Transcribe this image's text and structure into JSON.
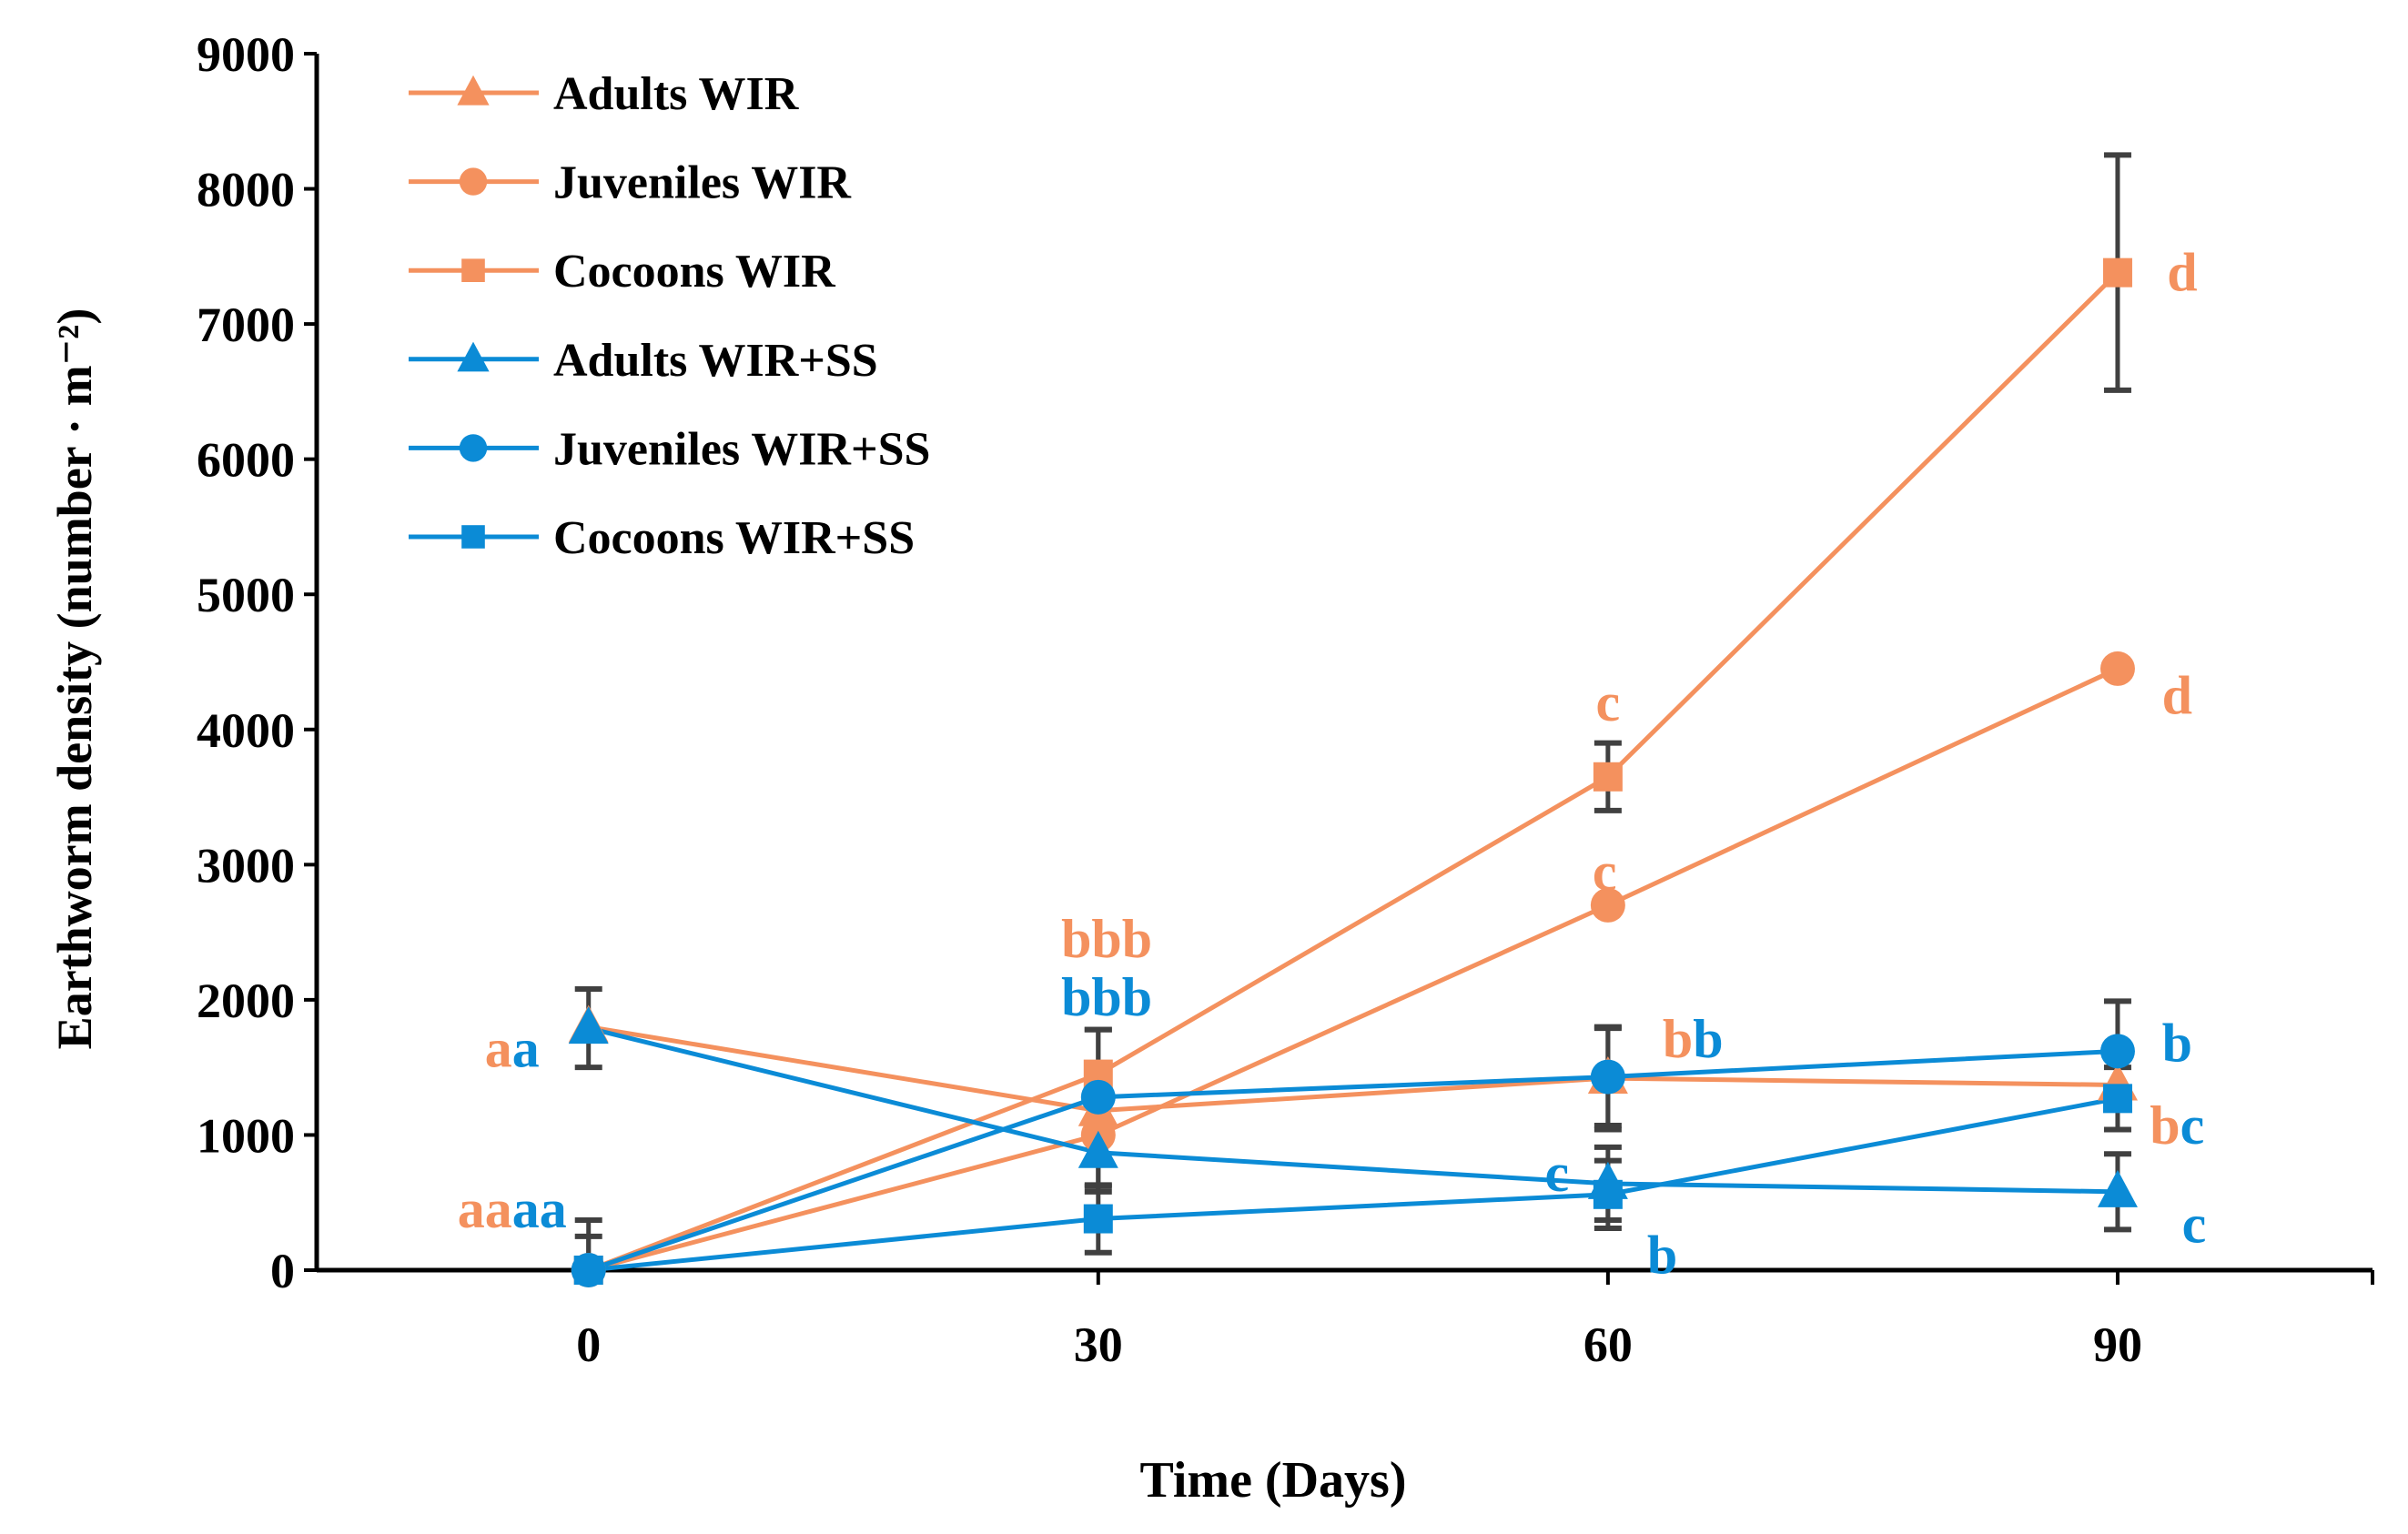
{
  "chart_data": {
    "type": "line",
    "title": "",
    "xlabel": "Time (Days)",
    "ylabel": "Earthworm density  (number · m⁻²)",
    "x": [
      0,
      30,
      60,
      90
    ],
    "xticks": [
      0,
      30,
      60,
      90
    ],
    "xlim": [
      -16,
      105
    ],
    "ylim": [
      0,
      9000
    ],
    "yticks": [
      0,
      1000,
      2000,
      3000,
      4000,
      5000,
      6000,
      7000,
      8000,
      9000
    ],
    "grid": false,
    "legend_position": "top-left",
    "colors": {
      "orange": "#F4915E",
      "blue": "#0B8BD6",
      "error": "#404040"
    },
    "series": [
      {
        "name": "Adults WIR",
        "color": "orange",
        "marker": "triangle",
        "values": [
          1800,
          1180,
          1420,
          1370
        ],
        "errors": [
          0,
          600,
          380,
          0
        ]
      },
      {
        "name": "Juveniles WIR",
        "color": "orange",
        "marker": "circle",
        "values": [
          0,
          1000,
          2700,
          4450
        ],
        "errors": [
          0,
          0,
          0,
          0
        ]
      },
      {
        "name": "Cocoons WIR",
        "color": "orange",
        "marker": "square",
        "values": [
          0,
          1450,
          3650,
          7380
        ],
        "errors": [
          0,
          330,
          250,
          870
        ]
      },
      {
        "name": "Adults WIR+SS",
        "color": "blue",
        "marker": "triangle",
        "values": [
          1790,
          870,
          640,
          580
        ],
        "errors": [
          290,
          250,
          270,
          280
        ]
      },
      {
        "name": "Juveniles WIR+SS",
        "color": "blue",
        "marker": "circle",
        "values": [
          0,
          1280,
          1430,
          1620
        ],
        "errors": [
          370,
          0,
          360,
          370
        ]
      },
      {
        "name": "Cocoons WIR+SS",
        "color": "blue",
        "marker": "square",
        "values": [
          0,
          380,
          560,
          1270
        ],
        "errors": [
          250,
          250,
          250,
          230
        ]
      }
    ],
    "annotations": [
      {
        "x": -4.5,
        "y": 1640,
        "parts": [
          {
            "text": "a",
            "color": "orange"
          },
          {
            "text": "a",
            "color": "blue"
          }
        ]
      },
      {
        "x": -4.5,
        "y": 450,
        "parts": [
          {
            "text": "aa",
            "color": "orange"
          },
          {
            "text": "aa",
            "color": "blue"
          }
        ]
      },
      {
        "x": 30.5,
        "y": 2450,
        "parts": [
          {
            "text": "bbb",
            "color": "orange"
          }
        ]
      },
      {
        "x": 30.5,
        "y": 2020,
        "parts": [
          {
            "text": "bbb",
            "color": "blue"
          }
        ]
      },
      {
        "x": 60,
        "y": 4200,
        "parts": [
          {
            "text": "c",
            "color": "orange"
          }
        ]
      },
      {
        "x": 59.8,
        "y": 2950,
        "parts": [
          {
            "text": "c",
            "color": "orange"
          }
        ]
      },
      {
        "x": 65,
        "y": 1710,
        "parts": [
          {
            "text": "b",
            "color": "orange"
          },
          {
            "text": "b",
            "color": "blue"
          }
        ]
      },
      {
        "x": 57,
        "y": 720,
        "parts": [
          {
            "text": "c",
            "color": "blue"
          }
        ]
      },
      {
        "x": 63.2,
        "y": 110,
        "parts": [
          {
            "text": "b",
            "color": "blue"
          }
        ]
      },
      {
        "x": 93.8,
        "y": 7380,
        "parts": [
          {
            "text": "d",
            "color": "orange"
          }
        ]
      },
      {
        "x": 93.5,
        "y": 4250,
        "parts": [
          {
            "text": "d",
            "color": "orange"
          }
        ]
      },
      {
        "x": 93.5,
        "y": 1680,
        "parts": [
          {
            "text": "b",
            "color": "blue"
          }
        ]
      },
      {
        "x": 93.5,
        "y": 1070,
        "parts": [
          {
            "text": "b",
            "color": "orange"
          },
          {
            "text": "c",
            "color": "blue"
          }
        ]
      },
      {
        "x": 94.5,
        "y": 340,
        "parts": [
          {
            "text": "c",
            "color": "blue"
          }
        ]
      }
    ]
  }
}
